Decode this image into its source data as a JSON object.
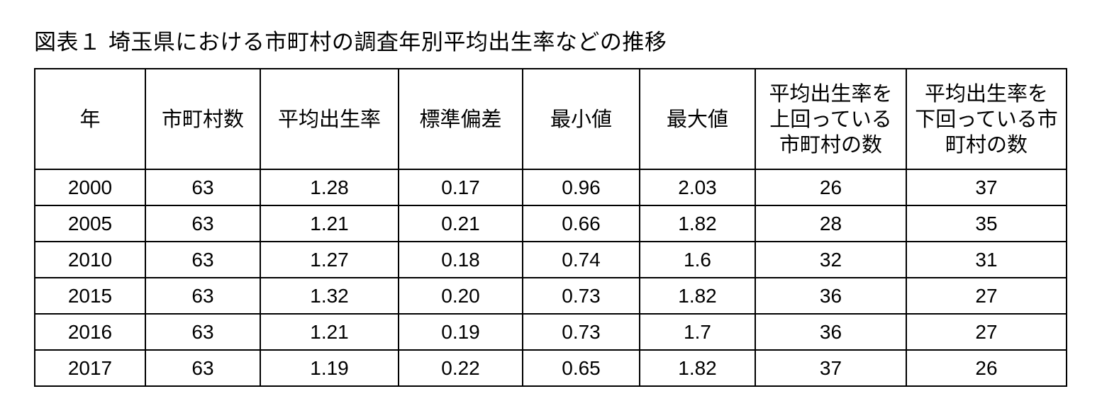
{
  "title": "図表１ 埼玉県における市町村の調査年別平均出生率などの推移",
  "table": {
    "headers": [
      "年",
      "市町村数",
      "平均出生率",
      "標準偏差",
      "最小値",
      "最大値",
      "平均出生率を\n上回っている\n市町村の数",
      "平均出生率を\n下回っている市\n町村の数"
    ],
    "rows": [
      [
        "2000",
        "63",
        "1.28",
        "0.17",
        "0.96",
        "2.03",
        "26",
        "37"
      ],
      [
        "2005",
        "63",
        "1.21",
        "0.21",
        "0.66",
        "1.82",
        "28",
        "35"
      ],
      [
        "2010",
        "63",
        "1.27",
        "0.18",
        "0.74",
        "1.6",
        "32",
        "31"
      ],
      [
        "2015",
        "63",
        "1.32",
        "0.20",
        "0.73",
        "1.82",
        "36",
        "27"
      ],
      [
        "2016",
        "63",
        "1.21",
        "0.19",
        "0.73",
        "1.7",
        "36",
        "27"
      ],
      [
        "2017",
        "63",
        "1.19",
        "0.22",
        "0.65",
        "1.82",
        "37",
        "26"
      ]
    ]
  }
}
